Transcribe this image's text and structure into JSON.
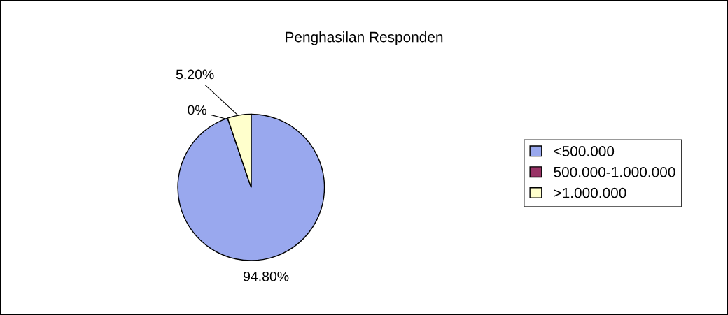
{
  "chart_data": {
    "type": "pie",
    "title": "Penghasilan Responden",
    "categories": [
      "<500.000",
      "500.000-1.000.000",
      ">1.000.000"
    ],
    "values": [
      94.8,
      0,
      5.2
    ],
    "colors": [
      "#99a8ee",
      "#993366",
      "#ffffcc"
    ],
    "value_labels": [
      "94.80%",
      "0%",
      "5.20%"
    ],
    "legend": "right"
  }
}
